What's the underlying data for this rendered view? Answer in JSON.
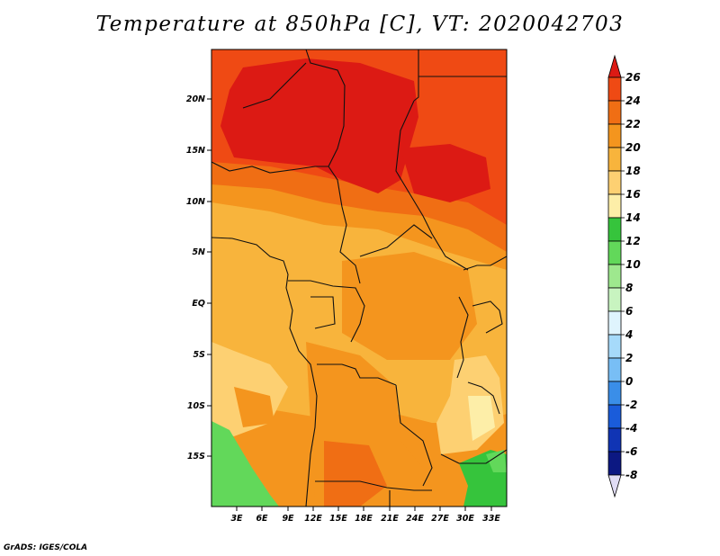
{
  "title": "Temperature at 850hPa [C], VT: 2020042703",
  "credit": "GrADS: IGES/COLA",
  "lat_labels": [
    "20N",
    "15N",
    "10N",
    "5N",
    "EQ",
    "5S",
    "10S",
    "15S"
  ],
  "lon_labels": [
    "3E",
    "6E",
    "9E",
    "12E",
    "15E",
    "18E",
    "21E",
    "24E",
    "27E",
    "30E",
    "33E"
  ],
  "colorbar": {
    "labels": [
      "26",
      "24",
      "22",
      "20",
      "18",
      "16",
      "14",
      "12",
      "10",
      "8",
      "6",
      "4",
      "2",
      "0",
      "-2",
      "-4",
      "-6",
      "-8"
    ],
    "colors": [
      "#dc1a14",
      "#ef4a14",
      "#f06e14",
      "#f4951e",
      "#f8b43c",
      "#fdd072",
      "#fdeea8",
      "#36c43c",
      "#62d85a",
      "#9ee88e",
      "#c8f4c0",
      "#dff4fd",
      "#a6dafa",
      "#78bef5",
      "#3a8ee8",
      "#1a5cda",
      "#1034b4",
      "#0c1882",
      "#e0dcf4"
    ]
  }
}
